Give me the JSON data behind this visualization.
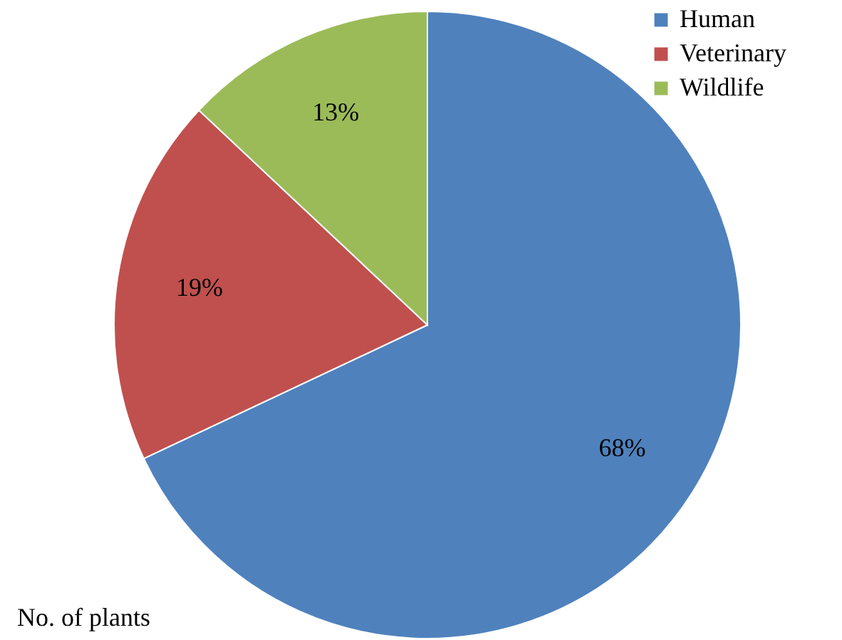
{
  "chart_data": {
    "type": "pie",
    "categories": [
      "Human",
      "Veterinary",
      "Wildlife"
    ],
    "values": [
      68,
      19,
      13
    ],
    "colors": [
      "#4f81bd",
      "#c0504d",
      "#9bbb59"
    ],
    "value_labels": [
      "68%",
      "19%",
      "13%"
    ],
    "legend": "top right",
    "annotations": [
      "No. of plants"
    ]
  }
}
